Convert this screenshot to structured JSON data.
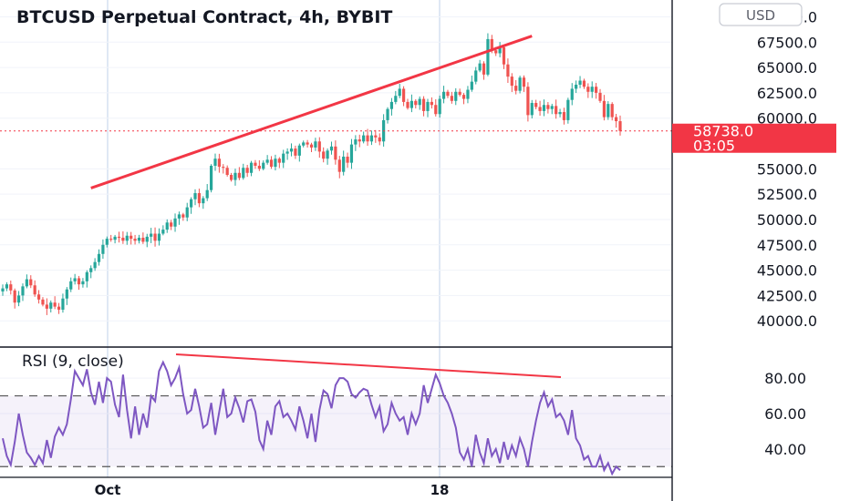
{
  "chart_data": [
    {
      "type": "candlestick",
      "title": "BTCUSD Perpetual Contract, 4h, BYBIT",
      "currency_button": "USD",
      "y_ticks": [
        "70000.0",
        "67500.0",
        "65000.0",
        "62500.0",
        "60000.0",
        "55000.0",
        "52500.0",
        "50000.0",
        "47500.0",
        "45000.0",
        "42500.0",
        "40000.0"
      ],
      "ylim": [
        38400,
        70400
      ],
      "x_ticks": [
        "Oct",
        "18"
      ],
      "last_price": "58738.0",
      "countdown": "03:05",
      "colors": {
        "up": "#26a69a",
        "down": "#ef5350",
        "trendline": "#f23645",
        "price_tag": "#f23645"
      },
      "close_series": [
        43200,
        43600,
        43000,
        41800,
        42500,
        43400,
        44100,
        43500,
        42600,
        42100,
        41600,
        41200,
        41800,
        41400,
        41100,
        42200,
        43100,
        43900,
        44200,
        43600,
        43900,
        44800,
        45200,
        45800,
        46600,
        47500,
        48100,
        48000,
        48300,
        48200,
        47900,
        48400,
        48100,
        47900,
        48200,
        47800,
        48300,
        48600,
        47900,
        48600,
        49000,
        49700,
        49300,
        50100,
        50500,
        50200,
        51200,
        52000,
        52600,
        51600,
        52100,
        52900,
        55300,
        56000,
        55200,
        55100,
        54400,
        53900,
        54600,
        54100,
        55100,
        54600,
        55600,
        55300,
        55000,
        55600,
        55900,
        55200,
        56000,
        55600,
        56500,
        56700,
        57000,
        56300,
        57300,
        57600,
        57400,
        57100,
        57700,
        56700,
        56000,
        56800,
        57200,
        55900,
        54700,
        56200,
        55600,
        57400,
        57900,
        57700,
        58300,
        57700,
        58300,
        58100,
        57700,
        59800,
        60900,
        61600,
        62200,
        62900,
        61600,
        61000,
        61700,
        61300,
        61900,
        60700,
        61600,
        61300,
        60400,
        61900,
        62600,
        62200,
        61700,
        62600,
        62300,
        61900,
        62800,
        63600,
        64700,
        65400,
        64300,
        67800,
        66700,
        66400,
        67000,
        65300,
        64100,
        63200,
        62700,
        64000,
        63100,
        60300,
        61500,
        61100,
        60700,
        61300,
        60900,
        61200,
        60400,
        60600,
        59800,
        61800,
        62900,
        63300,
        63700,
        63100,
        62600,
        63100,
        62500,
        61700,
        60100,
        61400,
        60100,
        59700,
        58738
      ],
      "trendlines": [
        {
          "from": [
            22,
            53100
          ],
          "to": [
            132,
            68100
          ]
        }
      ]
    },
    {
      "type": "line",
      "title": "RSI (9, close)",
      "y_ticks": [
        "80.00",
        "60.00",
        "40.00"
      ],
      "ylim": [
        25,
        95
      ],
      "bands": [
        30,
        70
      ],
      "line_color": "#7e57c2",
      "values": [
        46,
        36,
        31,
        44,
        60,
        48,
        38,
        35,
        31,
        36,
        32,
        45,
        35,
        47,
        52,
        48,
        54,
        68,
        84,
        80,
        76,
        85,
        72,
        65,
        78,
        66,
        80,
        78,
        65,
        58,
        82,
        62,
        46,
        64,
        48,
        60,
        52,
        70,
        67,
        84,
        89,
        84,
        76,
        80,
        86,
        71,
        60,
        62,
        74,
        64,
        52,
        54,
        66,
        48,
        61,
        74,
        58,
        60,
        69,
        63,
        55,
        67,
        68,
        61,
        45,
        40,
        56,
        48,
        64,
        67,
        58,
        60,
        56,
        51,
        64,
        56,
        46,
        60,
        44,
        62,
        73,
        71,
        63,
        76,
        80,
        80,
        78,
        71,
        69,
        72,
        74,
        73,
        65,
        58,
        64,
        50,
        54,
        66,
        60,
        56,
        58,
        48,
        60,
        54,
        60,
        76,
        66,
        74,
        82,
        77,
        70,
        66,
        60,
        52,
        38,
        34,
        40,
        30,
        48,
        38,
        32,
        46,
        36,
        40,
        32,
        44,
        34,
        42,
        36,
        46,
        40,
        30,
        44,
        56,
        66,
        72,
        64,
        68,
        58,
        60,
        56,
        48,
        62,
        46,
        42,
        34,
        36,
        30,
        30,
        36,
        28,
        32,
        26,
        30,
        28
      ]
    }
  ]
}
